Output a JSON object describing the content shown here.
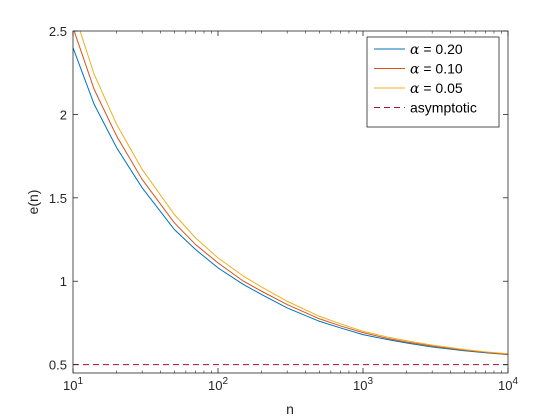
{
  "chart_data": {
    "type": "line",
    "xlabel": "n",
    "ylabel": "e(n)",
    "xscale": "log",
    "xlim": [
      10,
      10000
    ],
    "ylim": [
      0.45,
      2.5
    ],
    "grid": false,
    "legend_position": "top-right",
    "x_ticks": [
      {
        "value": 10,
        "base": "10",
        "exp": "1"
      },
      {
        "value": 100,
        "base": "10",
        "exp": "2"
      },
      {
        "value": 1000,
        "base": "10",
        "exp": "3"
      },
      {
        "value": 10000,
        "base": "10",
        "exp": "4"
      }
    ],
    "y_ticks": [
      {
        "value": 0.5,
        "label": "0.5"
      },
      {
        "value": 1,
        "label": "1"
      },
      {
        "value": 1.5,
        "label": "1.5"
      },
      {
        "value": 2,
        "label": "2"
      },
      {
        "value": 2.5,
        "label": "2.5"
      }
    ],
    "x": [
      10,
      14,
      20,
      30,
      50,
      70,
      100,
      150,
      200,
      300,
      500,
      700,
      1000,
      1500,
      2000,
      3000,
      5000,
      7000,
      10000
    ],
    "series": [
      {
        "name": "α = 0.20",
        "symbol": "α",
        "value_text": " = 0.20",
        "color": "#0072BD",
        "dash": "solid",
        "values": [
          2.4,
          2.06,
          1.8,
          1.56,
          1.31,
          1.19,
          1.08,
          0.98,
          0.92,
          0.84,
          0.76,
          0.72,
          0.68,
          0.649,
          0.63,
          0.606,
          0.583,
          0.571,
          0.56
        ]
      },
      {
        "name": "α = 0.10",
        "symbol": "α",
        "value_text": " = 0.10",
        "color": "#D95319",
        "dash": "solid",
        "values": [
          2.52,
          2.15,
          1.87,
          1.61,
          1.35,
          1.22,
          1.11,
          1.0,
          0.94,
          0.86,
          0.775,
          0.732,
          0.692,
          0.656,
          0.636,
          0.612,
          0.587,
          0.574,
          0.562
        ]
      },
      {
        "name": "α = 0.05",
        "symbol": "α",
        "value_text": " = 0.05",
        "color": "#EDB120",
        "dash": "solid",
        "values": [
          2.63,
          2.24,
          1.94,
          1.67,
          1.4,
          1.26,
          1.14,
          1.03,
          0.965,
          0.88,
          0.79,
          0.745,
          0.7,
          0.664,
          0.643,
          0.617,
          0.591,
          0.577,
          0.565
        ]
      },
      {
        "name": "asymptotic",
        "symbol": "",
        "value_text": "asymptotic",
        "color": "#A2142F",
        "dash": "dashed",
        "values": [
          0.5,
          0.5,
          0.5,
          0.5,
          0.5,
          0.5,
          0.5,
          0.5,
          0.5,
          0.5,
          0.5,
          0.5,
          0.5,
          0.5,
          0.5,
          0.5,
          0.5,
          0.5,
          0.5
        ]
      }
    ]
  }
}
